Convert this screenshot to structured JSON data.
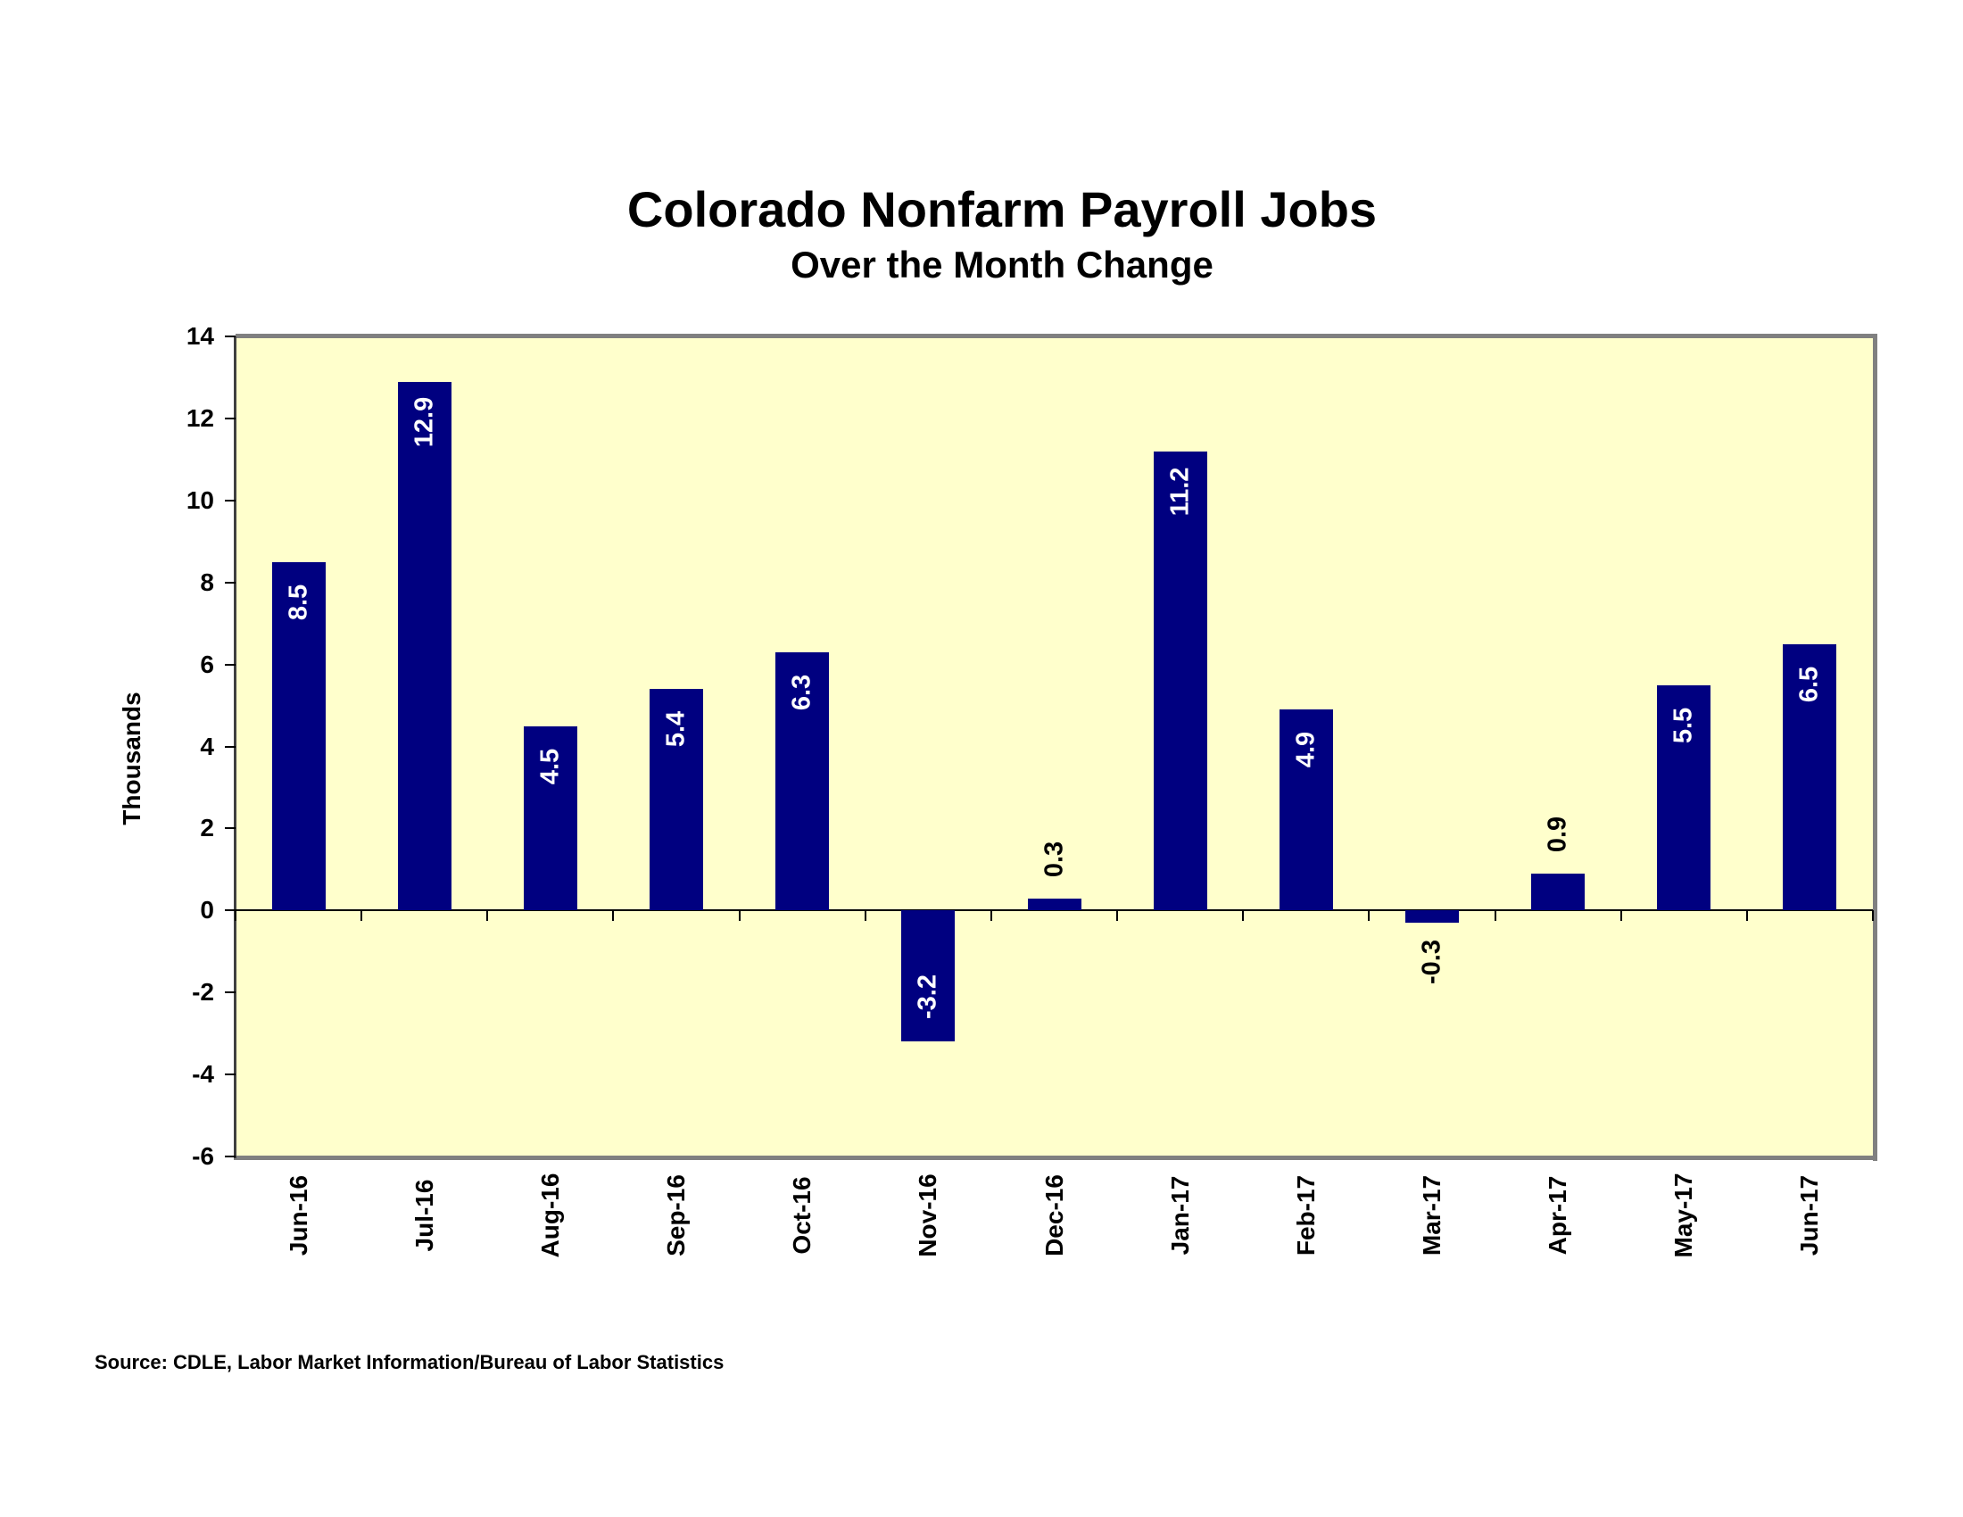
{
  "header": {
    "title": "Colorado Nonfarm Payroll Jobs",
    "subtitle": "Over the Month Change"
  },
  "axes": {
    "ylabel": "Thousands",
    "yticks": [
      "14",
      "12",
      "10",
      "8",
      "6",
      "4",
      "2",
      "0",
      "-2",
      "-4",
      "-6"
    ]
  },
  "footer": {
    "source": "Source: CDLE, Labor Market Information/Bureau of Labor Statistics"
  },
  "colors": {
    "bar": "#000080",
    "plot_background": "#ffffcc",
    "frame": "#808080"
  },
  "chart_data": {
    "type": "bar",
    "title": "Colorado Nonfarm Payroll Jobs",
    "subtitle": "Over the Month Change",
    "xlabel": "",
    "ylabel": "Thousands",
    "ylim": [
      -6,
      14
    ],
    "ytick_step": 2,
    "grid": false,
    "legend": null,
    "categories": [
      "Jun-16",
      "Jul-16",
      "Aug-16",
      "Sep-16",
      "Oct-16",
      "Nov-16",
      "Dec-16",
      "Jan-17",
      "Feb-17",
      "Mar-17",
      "Apr-17",
      "May-17",
      "Jun-17"
    ],
    "values": [
      8.5,
      12.9,
      4.5,
      5.4,
      6.3,
      -3.2,
      0.3,
      11.2,
      4.9,
      -0.3,
      0.9,
      5.5,
      6.5
    ],
    "labels": [
      "8.5",
      "12.9",
      "4.5",
      "5.4",
      "6.3",
      "-3.2",
      "0.3",
      "11.2",
      "4.9",
      "-0.3",
      "0.9",
      "5.5",
      "6.5"
    ],
    "source": "Source: CDLE, Labor Market Information/Bureau of Labor Statistics"
  }
}
